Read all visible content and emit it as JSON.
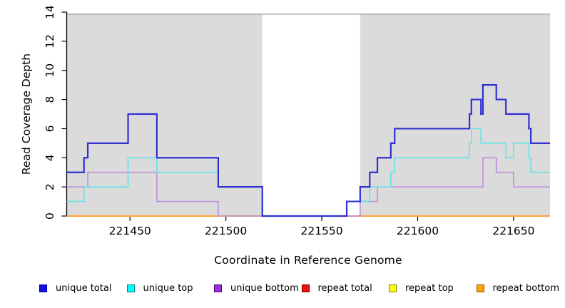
{
  "chart_data": {
    "type": "line",
    "subtype": "step-coverage",
    "xlabel": "Coordinate in Reference Genome",
    "ylabel": "Read Coverage Depth",
    "xlim": [
      221417,
      221669
    ],
    "ylim": [
      0,
      14
    ],
    "xticks": [
      221450,
      221500,
      221550,
      221600,
      221650
    ],
    "yticks": [
      0,
      2,
      4,
      6,
      8,
      10,
      12,
      14
    ],
    "plot_bg": "#DBDBDB",
    "top_border_color": "#A0A0A0",
    "gap_region": {
      "start": 221519,
      "end": 221570,
      "color": "#FFFFFF"
    },
    "series": [
      {
        "name": "repeat top",
        "color": "#FFFF00",
        "width": 1.6,
        "steps": [
          [
            221417,
            0
          ]
        ],
        "xend": 221669
      },
      {
        "name": "repeat total",
        "color": "#CC3A50",
        "width": 1.6,
        "steps": [
          [
            221417,
            0
          ]
        ],
        "xend": 221669
      },
      {
        "name": "repeat bottom",
        "color": "#FFA230",
        "width": 2.0,
        "steps": [
          [
            221417,
            0
          ]
        ],
        "xend": 221669
      },
      {
        "name": "unique bottom",
        "color": "#BE8EDE",
        "width": 1.6,
        "steps": [
          [
            221417,
            2
          ],
          [
            221428,
            3
          ],
          [
            221464,
            1
          ],
          [
            221496,
            0
          ],
          [
            221570,
            1
          ],
          [
            221579,
            2
          ],
          [
            221634,
            4
          ],
          [
            221641,
            3
          ],
          [
            221650,
            2
          ]
        ],
        "xend": 221669
      },
      {
        "name": "unique top",
        "color": "#63E3E8",
        "width": 1.6,
        "steps": [
          [
            221417,
            1
          ],
          [
            221426,
            2
          ],
          [
            221449,
            4
          ],
          [
            221464,
            3
          ],
          [
            221496,
            2
          ],
          [
            221519,
            0
          ],
          [
            221563,
            1
          ],
          [
            221575,
            2
          ],
          [
            221586,
            3
          ],
          [
            221588,
            4
          ],
          [
            221627,
            5
          ],
          [
            221628,
            6
          ],
          [
            221633,
            5
          ],
          [
            221646,
            4
          ],
          [
            221650,
            5
          ],
          [
            221658,
            4
          ],
          [
            221659,
            3
          ]
        ],
        "xend": 221669
      },
      {
        "name": "unique total",
        "color": "#3030D2",
        "width": 2.2,
        "steps": [
          [
            221417,
            3
          ],
          [
            221426,
            4
          ],
          [
            221428,
            5
          ],
          [
            221449,
            7
          ],
          [
            221464,
            4
          ],
          [
            221496,
            2
          ],
          [
            221519,
            0
          ],
          [
            221563,
            1
          ],
          [
            221570,
            2
          ],
          [
            221575,
            3
          ],
          [
            221579,
            4
          ],
          [
            221586,
            5
          ],
          [
            221588,
            6
          ],
          [
            221627,
            7
          ],
          [
            221628,
            8
          ],
          [
            221633,
            7
          ],
          [
            221634,
            9
          ],
          [
            221641,
            8
          ],
          [
            221646,
            7
          ],
          [
            221658,
            6
          ],
          [
            221659,
            5
          ]
        ],
        "xend": 221669
      }
    ],
    "legend": [
      {
        "label": "unique total",
        "color": "#1111DD",
        "border": "#000099"
      },
      {
        "label": "unique top",
        "color": "#00FFFF",
        "border": "#007A8A"
      },
      {
        "label": "unique bottom",
        "color": "#9933CC",
        "border": "#4B0082"
      },
      {
        "label": "repeat total",
        "color": "#EE1111",
        "border": "#770000"
      },
      {
        "label": "repeat top",
        "color": "#FFFF00",
        "border": "#888800"
      },
      {
        "label": "repeat bottom",
        "color": "#FFA300",
        "border": "#8A5500"
      }
    ],
    "legend_position": "bottom"
  }
}
